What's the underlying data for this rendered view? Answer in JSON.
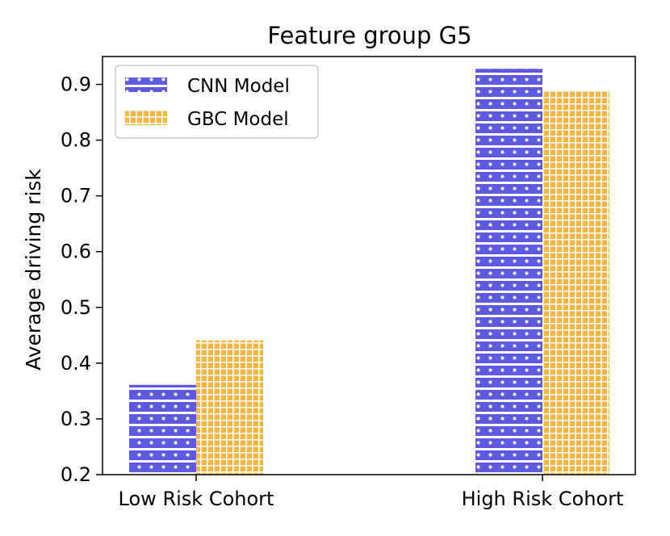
{
  "chart_data": {
    "type": "bar",
    "title": "Feature group G5",
    "xlabel": "",
    "ylabel": "Average driving risk",
    "categories": [
      "Low Risk Cohort",
      "High Risk Cohort"
    ],
    "series": [
      {
        "name": "CNN Model",
        "values": [
          0.361,
          0.928
        ],
        "color": "#5e5ae0",
        "pattern": "dots"
      },
      {
        "name": "GBC Model",
        "values": [
          0.441,
          0.889
        ],
        "color": "#f6b636",
        "pattern": "grid"
      }
    ],
    "ylim": [
      0.2,
      0.95
    ],
    "yticks": [
      "0.2",
      "0.3",
      "0.4",
      "0.5",
      "0.6",
      "0.7",
      "0.8",
      "0.9"
    ],
    "grid": false,
    "legend_position": "top-left"
  }
}
